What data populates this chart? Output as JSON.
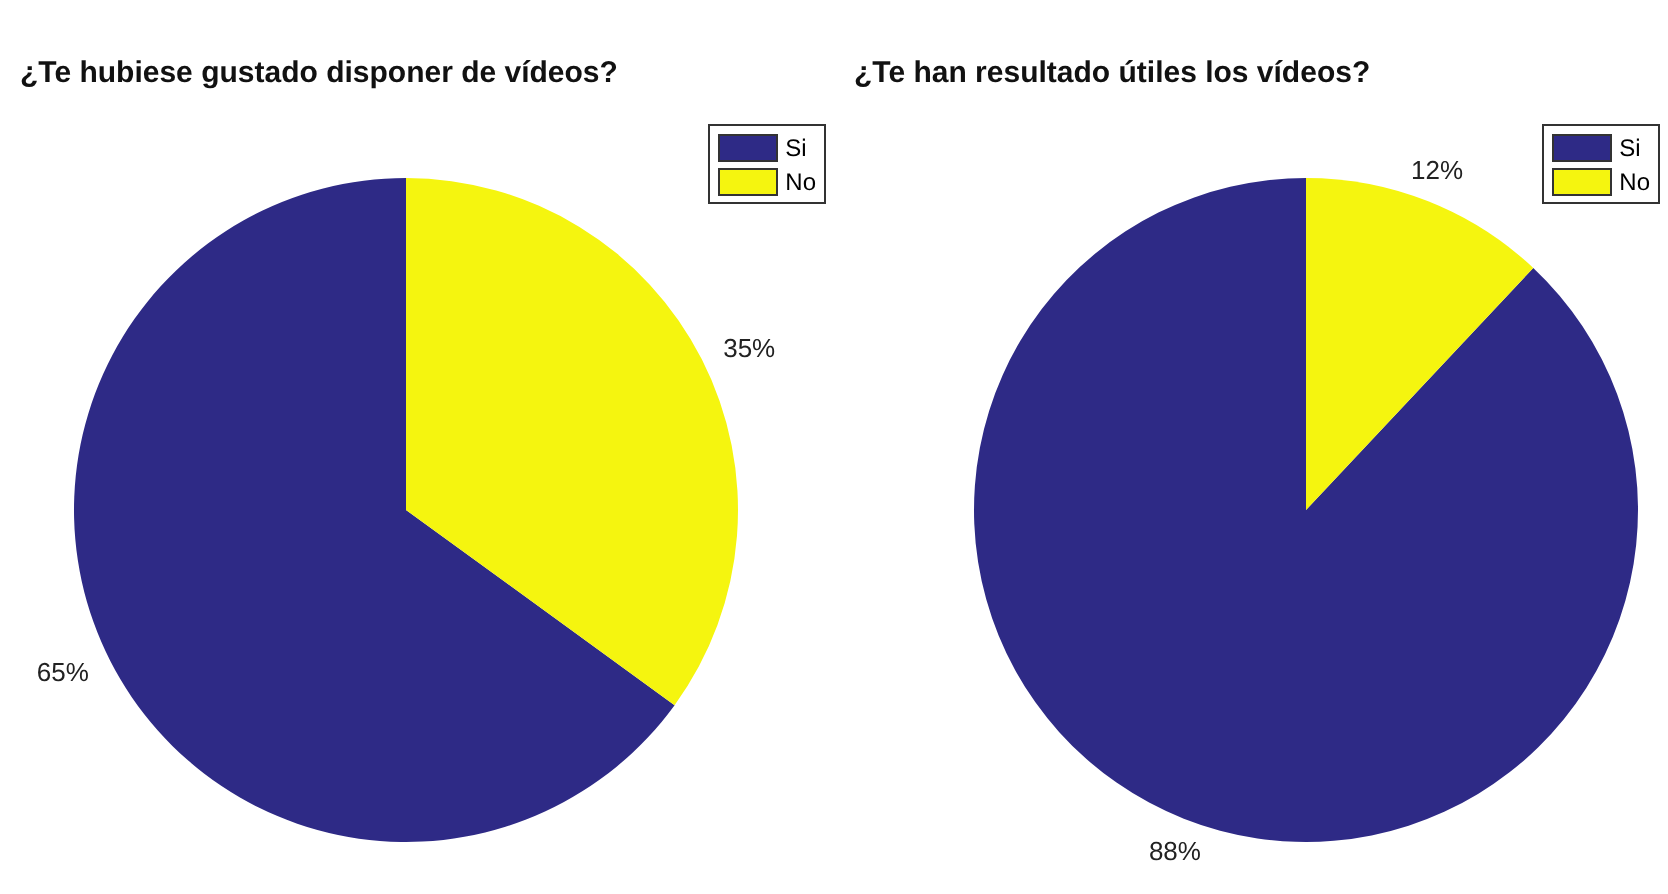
{
  "chart_data": [
    {
      "type": "pie",
      "title": "¿Te hubiese gustado disponer de vídeos?",
      "categories": [
        "Si",
        "No"
      ],
      "values": [
        65,
        35
      ],
      "colors": [
        "#2e2a86",
        "#f5f50f"
      ],
      "value_labels": [
        "65%",
        "35%"
      ],
      "legend": "top right"
    },
    {
      "type": "pie",
      "title": "¿Te han resultado útiles los vídeos?",
      "categories": [
        "Si",
        "No"
      ],
      "values": [
        88,
        12
      ],
      "colors": [
        "#2e2a86",
        "#f5f50f"
      ],
      "value_labels": [
        "88%",
        "12%"
      ],
      "legend": "top right"
    }
  ]
}
